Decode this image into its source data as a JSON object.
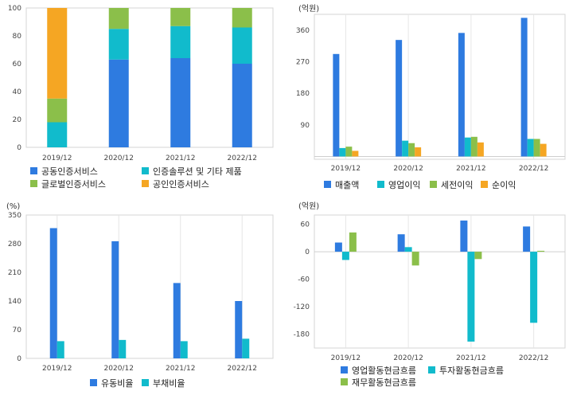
{
  "chart_data": [
    {
      "type": "bar",
      "stacked": true,
      "normalized_percent": true,
      "unit": "",
      "categories": [
        "2019/12",
        "2020/12",
        "2021/12",
        "2022/12"
      ],
      "ylim": [
        0,
        100
      ],
      "yticks": [
        0,
        20,
        40,
        60,
        80,
        100
      ],
      "series": [
        {
          "name": "공동인증서비스",
          "color": "#2E7BE0",
          "values": [
            0,
            63,
            64,
            60
          ]
        },
        {
          "name": "인증솔루션 및 기타 제품",
          "color": "#11BBCC",
          "values": [
            18,
            22,
            23,
            26
          ]
        },
        {
          "name": "글로벌인증서비스",
          "color": "#8BBF4A",
          "values": [
            17,
            15,
            13,
            14
          ]
        },
        {
          "name": "공인인증서비스",
          "color": "#F5A623",
          "values": [
            65,
            0,
            0,
            0
          ]
        }
      ],
      "legend_position": "bottom",
      "grid": "vertical"
    },
    {
      "type": "bar",
      "unit": "(억원)",
      "categories": [
        "2019/12",
        "2020/12",
        "2021/12",
        "2022/12"
      ],
      "ylim": [
        -8,
        405
      ],
      "yticks": [
        90,
        180,
        270,
        360
      ],
      "series": [
        {
          "name": "매출액",
          "color": "#2E7BE0",
          "values": [
            292,
            332,
            352,
            395
          ]
        },
        {
          "name": "영업이익",
          "color": "#11BBCC",
          "values": [
            24,
            45,
            54,
            50
          ]
        },
        {
          "name": "세전이익",
          "color": "#8BBF4A",
          "values": [
            28,
            38,
            56,
            50
          ]
        },
        {
          "name": "순이익",
          "color": "#F5A623",
          "values": [
            16,
            26,
            40,
            36
          ]
        }
      ],
      "legend_position": "bottom",
      "grid": "vertical"
    },
    {
      "type": "bar",
      "unit": "(%)",
      "categories": [
        "2019/12",
        "2020/12",
        "2021/12",
        "2022/12"
      ],
      "ylim": [
        0,
        350
      ],
      "yticks": [
        0,
        70,
        140,
        210,
        280,
        350
      ],
      "series": [
        {
          "name": "유동비율",
          "color": "#2E7BE0",
          "values": [
            318,
            286,
            184,
            140
          ]
        },
        {
          "name": "부채비율",
          "color": "#11BBCC",
          "values": [
            42,
            45,
            42,
            48
          ]
        }
      ],
      "legend_position": "bottom",
      "grid": "vertical"
    },
    {
      "type": "bar",
      "unit": "(억원)",
      "categories": [
        "2019/12",
        "2020/12",
        "2021/12",
        "2022/12"
      ],
      "ylim": [
        -210,
        80
      ],
      "yticks": [
        -180,
        -120,
        -60,
        0,
        60
      ],
      "series": [
        {
          "name": "영업활동현금흐름",
          "color": "#2E7BE0",
          "values": [
            20,
            38,
            68,
            55
          ]
        },
        {
          "name": "투자활동현금흐름",
          "color": "#11BBCC",
          "values": [
            -18,
            10,
            -196,
            -155
          ]
        },
        {
          "name": "재무활동현금흐름",
          "color": "#8BBF4A",
          "values": [
            42,
            -30,
            -16,
            2
          ]
        }
      ],
      "legend_position": "bottom",
      "grid": "vertical"
    }
  ]
}
